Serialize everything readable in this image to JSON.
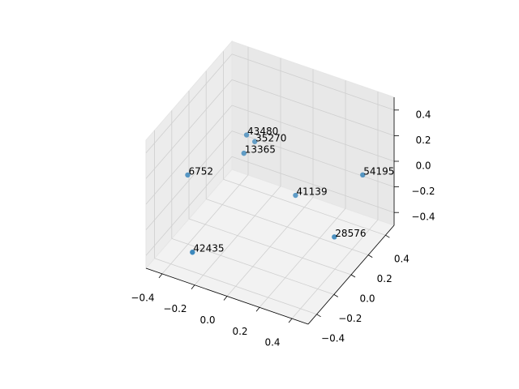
{
  "chart_data": {
    "type": "scatter3d",
    "x": [
      -0.15,
      -0.11,
      -0.14,
      -0.37,
      0.46,
      0.12,
      0.37,
      -0.24
    ],
    "y": [
      0.01,
      0.03,
      -0.04,
      -0.26,
      0.21,
      0.07,
      0.05,
      -0.45
    ],
    "z": [
      0.3,
      0.25,
      0.2,
      0.1,
      0.1,
      -0.1,
      -0.3,
      -0.3
    ],
    "point_labels": [
      "43480",
      "35270",
      "13365",
      "6752",
      "54195",
      "41139",
      "28576",
      "42435"
    ],
    "color": "#1f77b4",
    "xlim": [
      -0.5,
      0.5
    ],
    "ylim": [
      -0.5,
      0.5
    ],
    "zlim": [
      -0.5,
      0.5
    ],
    "xticks": [
      {
        "value": -0.4,
        "label": "−0.4"
      },
      {
        "value": -0.2,
        "label": "−0.2"
      },
      {
        "value": 0,
        "label": "0.0"
      },
      {
        "value": 0.2,
        "label": "0.2"
      },
      {
        "value": 0.4,
        "label": "0.4"
      }
    ],
    "yticks": [
      {
        "value": -0.4,
        "label": "−0.4"
      },
      {
        "value": -0.2,
        "label": "−0.2"
      },
      {
        "value": 0,
        "label": "0.0"
      },
      {
        "value": 0.2,
        "label": "0.2"
      },
      {
        "value": 0.4,
        "label": "0.4"
      }
    ],
    "zticks": [
      {
        "value": -0.4,
        "label": "−0.4"
      },
      {
        "value": -0.2,
        "label": "−0.2"
      },
      {
        "value": 0,
        "label": "0.0"
      },
      {
        "value": 0.2,
        "label": "0.2"
      },
      {
        "value": 0.4,
        "label": "0.4"
      }
    ],
    "grid": true
  }
}
